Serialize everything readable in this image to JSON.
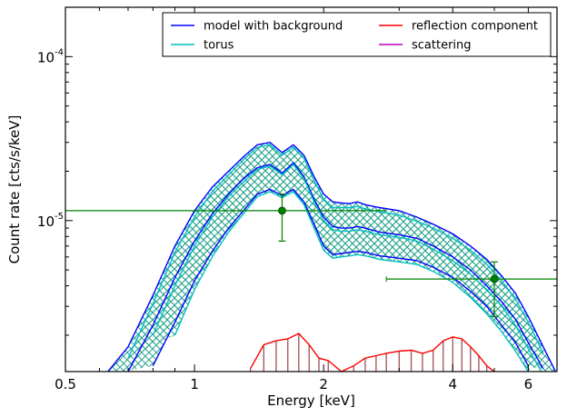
{
  "chart_data": {
    "type": "line",
    "title": "",
    "xlabel": "Energy [keV]",
    "ylabel": "Count rate [cts/s/keV]",
    "xscale": "log",
    "yscale": "log",
    "xlim": [
      0.5,
      7.0
    ],
    "ylim": [
      1.2e-06,
      0.0002
    ],
    "x_ticks": [
      {
        "value": 0.5,
        "label": "0.5"
      },
      {
        "value": 1,
        "label": "1"
      },
      {
        "value": 2,
        "label": "2"
      },
      {
        "value": 4,
        "label": "4"
      },
      {
        "value": 6,
        "label": "6"
      }
    ],
    "y_ticks": [
      {
        "value": 1e-05,
        "label": "10",
        "exponent": "-5"
      },
      {
        "value": 0.0001,
        "label": "10",
        "exponent": "-4"
      }
    ],
    "legend": {
      "placement": "top-right",
      "columns": 2,
      "entries": [
        {
          "name": "model with background",
          "color": "#0000ff"
        },
        {
          "name": "torus",
          "color": "#00bfbf"
        },
        {
          "name": "reflection component",
          "color": "#ff0000"
        },
        {
          "name": "scattering",
          "color": "#bf00bf"
        }
      ]
    },
    "hatch_color": "#2ca58d",
    "data_color": "#008000",
    "x": [
      0.62,
      0.7,
      0.8,
      0.9,
      1.0,
      1.1,
      1.2,
      1.3,
      1.4,
      1.5,
      1.6,
      1.7,
      1.8,
      1.9,
      2.0,
      2.1,
      2.2,
      2.3,
      2.4,
      2.5,
      2.7,
      3.0,
      3.3,
      3.6,
      4.0,
      4.4,
      4.8,
      5.2,
      5.6,
      6.0,
      6.5,
      7.0
    ],
    "series": [
      {
        "name": "model with background",
        "color": "#0000ff",
        "role": "upper",
        "values": [
          1.15e-06,
          1.7e-06,
          3.5e-06,
          7e-06,
          1.15e-05,
          1.6e-05,
          2e-05,
          2.45e-05,
          2.9e-05,
          3e-05,
          2.6e-05,
          2.9e-05,
          2.5e-05,
          1.85e-05,
          1.45e-05,
          1.3e-05,
          1.28e-05,
          1.27e-05,
          1.3e-05,
          1.25e-05,
          1.2e-05,
          1.15e-05,
          1.05e-05,
          9.5e-06,
          8.3e-06,
          7e-06,
          5.8e-06,
          4.6e-06,
          3.6e-06,
          2.6e-06,
          1.7e-06,
          1.15e-06
        ]
      },
      {
        "name": "model with background",
        "color": "#0000ff",
        "role": "middle",
        "values": [
          null,
          1.2e-06,
          2.3e-06,
          4.5e-06,
          7.5e-06,
          1.1e-05,
          1.45e-05,
          1.8e-05,
          2.1e-05,
          2.2e-05,
          1.95e-05,
          2.25e-05,
          1.85e-05,
          1.35e-05,
          1.05e-05,
          9.2e-06,
          9e-06,
          9e-06,
          9.2e-06,
          9e-06,
          8.5e-06,
          8.2e-06,
          7.8e-06,
          7e-06,
          6e-06,
          5e-06,
          4e-06,
          3.2e-06,
          2.5e-06,
          1.8e-06,
          1.25e-06,
          null
        ]
      },
      {
        "name": "model with background",
        "color": "#0000ff",
        "role": "lower",
        "values": [
          null,
          null,
          1.3e-06,
          2.4e-06,
          4.3e-06,
          6.5e-06,
          9e-06,
          1.15e-05,
          1.45e-05,
          1.55e-05,
          1.42e-05,
          1.55e-05,
          1.3e-05,
          9.5e-06,
          7e-06,
          6.2e-06,
          6.3e-06,
          6.4e-06,
          6.5e-06,
          6.4e-06,
          6.1e-06,
          5.9e-06,
          5.7e-06,
          5.2e-06,
          4.5e-06,
          3.7e-06,
          3e-06,
          2.3e-06,
          1.8e-06,
          1.3e-06,
          null,
          null
        ]
      },
      {
        "name": "torus",
        "color": "#00bfbf",
        "role": "upper",
        "values": [
          null,
          1.45e-06,
          3.1e-06,
          6.4e-06,
          1.05e-05,
          1.5e-05,
          1.9e-05,
          2.35e-05,
          2.8e-05,
          2.9e-05,
          2.5e-05,
          2.8e-05,
          2.4e-05,
          1.75e-05,
          1.35e-05,
          1.2e-05,
          1.2e-05,
          1.2e-05,
          1.22e-05,
          1.18e-05,
          1.13e-05,
          1.08e-05,
          9.9e-06,
          9e-06,
          7.8e-06,
          6.6e-06,
          5.4e-06,
          4.3e-06,
          3.3e-06,
          2.4e-06,
          1.55e-06,
          null
        ]
      },
      {
        "name": "torus",
        "color": "#00bfbf",
        "role": "middle",
        "values": [
          null,
          null,
          2e-06,
          4e-06,
          7e-06,
          1.05e-05,
          1.4e-05,
          1.72e-05,
          2.05e-05,
          2.15e-05,
          1.9e-05,
          2.2e-05,
          1.8e-05,
          1.3e-05,
          1e-05,
          8.8e-06,
          8.6e-06,
          8.6e-06,
          8.8e-06,
          8.6e-06,
          8.2e-06,
          7.9e-06,
          7.5e-06,
          6.7e-06,
          5.7e-06,
          4.7e-06,
          3.8e-06,
          3e-06,
          2.3e-06,
          1.65e-06,
          1.15e-06,
          null
        ]
      },
      {
        "name": "torus",
        "color": "#00bfbf",
        "role": "lower",
        "values": [
          null,
          null,
          null,
          2e-06,
          3.8e-06,
          6e-06,
          8.5e-06,
          1.1e-05,
          1.4e-05,
          1.5e-05,
          1.38e-05,
          1.5e-05,
          1.25e-05,
          9e-06,
          6.6e-06,
          5.9e-06,
          6e-06,
          6.1e-06,
          6.2e-06,
          6.1e-06,
          5.8e-06,
          5.6e-06,
          5.4e-06,
          4.9e-06,
          4.2e-06,
          3.4e-06,
          2.7e-06,
          2.1e-06,
          1.6e-06,
          1.2e-06,
          null,
          null
        ]
      }
    ],
    "reflection": {
      "name": "reflection component",
      "color": "#ff0000",
      "stem_color": "#a05050",
      "x": [
        1.35,
        1.45,
        1.55,
        1.65,
        1.75,
        1.85,
        1.95,
        2.05,
        2.2,
        2.35,
        2.5,
        2.65,
        2.8,
        3.0,
        3.2,
        3.4,
        3.6,
        3.8,
        4.0,
        4.2,
        4.4,
        4.6,
        4.8,
        5.0,
        5.3
      ],
      "values": [
        1.25e-06,
        1.75e-06,
        1.85e-06,
        1.9e-06,
        2.05e-06,
        1.75e-06,
        1.45e-06,
        1.4e-06,
        1.2e-06,
        1.3e-06,
        1.45e-06,
        1.5e-06,
        1.55e-06,
        1.6e-06,
        1.62e-06,
        1.55e-06,
        1.62e-06,
        1.85e-06,
        1.95e-06,
        1.9e-06,
        1.7e-06,
        1.5e-06,
        1.3e-06,
        1.2e-06,
        1.15e-06
      ]
    },
    "data_points": [
      {
        "x": 1.6,
        "y": 1.15e-05,
        "xlo": 0.5,
        "xhi": 2.8,
        "ylo": 7.5e-06,
        "yhi": 1.45e-05
      },
      {
        "x": 5.0,
        "y": 4.4e-06,
        "xlo": 2.8,
        "xhi": 7.0,
        "ylo": 2.6e-06,
        "yhi": 5.6e-06
      }
    ]
  }
}
